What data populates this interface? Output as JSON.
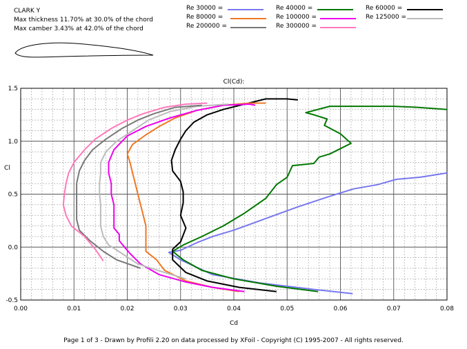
{
  "header": {
    "airfoil": "CLARK Y",
    "thickness": "Max thickness 11.70% at 30.0% of the chord",
    "camber": "Max camber 3.43% at 42.0% of the chord"
  },
  "footer": "Page 1 of 3  -  Drawn by Profili 2.20 on data processed by  XFoil - Copyright (C) 1995-2007 - All rights reserved.",
  "chart_data": {
    "type": "line",
    "title": "Cl(Cd):",
    "xlabel": "Cd",
    "ylabel": "Cl",
    "xlim": [
      0,
      0.08
    ],
    "ylim": [
      -0.5,
      1.5
    ],
    "xticks": [
      "0.00",
      "0.01",
      "0.02",
      "0.03",
      "0.04",
      "0.05",
      "0.06",
      "0.07",
      "0.08"
    ],
    "yticks": [
      "-0.5",
      "0.0",
      "0.5",
      "1.0",
      "1.5"
    ],
    "grid": true,
    "legend_position": "top",
    "series": [
      {
        "name": "Re 30000 =",
        "color": "#7777ee",
        "points": [
          [
            0.0623,
            -0.44
          ],
          [
            0.055,
            -0.4
          ],
          [
            0.045,
            -0.34
          ],
          [
            0.036,
            -0.26
          ],
          [
            0.03,
            -0.12
          ],
          [
            0.0278,
            -0.05
          ],
          [
            0.03,
            -0.03
          ],
          [
            0.033,
            0.04
          ],
          [
            0.036,
            0.1
          ],
          [
            0.04,
            0.16
          ],
          [
            0.046,
            0.27
          ],
          [
            0.052,
            0.38
          ],
          [
            0.058,
            0.48
          ],
          [
            0.0625,
            0.55
          ],
          [
            0.067,
            0.59
          ],
          [
            0.0705,
            0.64
          ],
          [
            0.075,
            0.66
          ],
          [
            0.08,
            0.7
          ]
        ]
      },
      {
        "name": "Re 40000 =",
        "color": "#007700",
        "points": [
          [
            0.0558,
            -0.42
          ],
          [
            0.048,
            -0.37
          ],
          [
            0.04,
            -0.3
          ],
          [
            0.034,
            -0.22
          ],
          [
            0.0305,
            -0.12
          ],
          [
            0.0285,
            -0.04
          ],
          [
            0.0305,
            0.02
          ],
          [
            0.034,
            0.1
          ],
          [
            0.038,
            0.2
          ],
          [
            0.042,
            0.32
          ],
          [
            0.046,
            0.46
          ],
          [
            0.048,
            0.59
          ],
          [
            0.05,
            0.66
          ],
          [
            0.051,
            0.77
          ],
          [
            0.055,
            0.79
          ],
          [
            0.056,
            0.85
          ],
          [
            0.058,
            0.88
          ],
          [
            0.062,
            0.98
          ],
          [
            0.06,
            1.07
          ],
          [
            0.057,
            1.15
          ],
          [
            0.0575,
            1.21
          ],
          [
            0.055,
            1.25
          ],
          [
            0.0535,
            1.27
          ],
          [
            0.058,
            1.33
          ],
          [
            0.07,
            1.33
          ],
          [
            0.0745,
            1.32
          ],
          [
            0.08,
            1.3
          ]
        ]
      },
      {
        "name": "Re 60000 =",
        "color": "#000000",
        "points": [
          [
            0.048,
            -0.42
          ],
          [
            0.041,
            -0.38
          ],
          [
            0.035,
            -0.32
          ],
          [
            0.031,
            -0.24
          ],
          [
            0.0285,
            -0.12
          ],
          [
            0.0285,
            -0.02
          ],
          [
            0.03,
            0.05
          ],
          [
            0.031,
            0.18
          ],
          [
            0.03,
            0.3
          ],
          [
            0.0305,
            0.42
          ],
          [
            0.0305,
            0.52
          ],
          [
            0.03,
            0.62
          ],
          [
            0.0285,
            0.72
          ],
          [
            0.0283,
            0.82
          ],
          [
            0.029,
            0.92
          ],
          [
            0.03,
            1.02
          ],
          [
            0.031,
            1.1
          ],
          [
            0.0325,
            1.18
          ],
          [
            0.035,
            1.25
          ],
          [
            0.038,
            1.3
          ],
          [
            0.042,
            1.35
          ],
          [
            0.046,
            1.4
          ],
          [
            0.05,
            1.4
          ],
          [
            0.052,
            1.39
          ]
        ]
      },
      {
        "name": "Re 80000 =",
        "color": "#ee7722",
        "points": [
          [
            0.041,
            -0.42
          ],
          [
            0.036,
            -0.38
          ],
          [
            0.031,
            -0.32
          ],
          [
            0.027,
            -0.22
          ],
          [
            0.0255,
            -0.12
          ],
          [
            0.0235,
            -0.04
          ],
          [
            0.0235,
            0.02
          ],
          [
            0.0235,
            0.1
          ],
          [
            0.0235,
            0.2
          ],
          [
            0.023,
            0.3
          ],
          [
            0.0225,
            0.4
          ],
          [
            0.022,
            0.5
          ],
          [
            0.0215,
            0.6
          ],
          [
            0.021,
            0.7
          ],
          [
            0.0205,
            0.8
          ],
          [
            0.02,
            0.88
          ],
          [
            0.021,
            0.97
          ],
          [
            0.0235,
            1.06
          ],
          [
            0.026,
            1.14
          ],
          [
            0.029,
            1.22
          ],
          [
            0.033,
            1.29
          ],
          [
            0.038,
            1.34
          ],
          [
            0.043,
            1.36
          ],
          [
            0.046,
            1.36
          ]
        ]
      },
      {
        "name": "Re 100000 =",
        "color": "#ee00ee",
        "points": [
          [
            0.042,
            -0.42
          ],
          [
            0.036,
            -0.38
          ],
          [
            0.031,
            -0.33
          ],
          [
            0.026,
            -0.26
          ],
          [
            0.0225,
            -0.16
          ],
          [
            0.0205,
            -0.06
          ],
          [
            0.0195,
            0.0
          ],
          [
            0.0185,
            0.06
          ],
          [
            0.0185,
            0.12
          ],
          [
            0.0175,
            0.18
          ],
          [
            0.0175,
            0.3
          ],
          [
            0.0175,
            0.4
          ],
          [
            0.017,
            0.5
          ],
          [
            0.017,
            0.6
          ],
          [
            0.0165,
            0.7
          ],
          [
            0.0165,
            0.8
          ],
          [
            0.0175,
            0.92
          ],
          [
            0.02,
            1.05
          ],
          [
            0.0235,
            1.14
          ],
          [
            0.028,
            1.22
          ],
          [
            0.033,
            1.29
          ],
          [
            0.038,
            1.34
          ],
          [
            0.043,
            1.35
          ],
          [
            0.044,
            1.34
          ]
        ]
      },
      {
        "name": "Re 125000 =",
        "color": "#bbbbbb",
        "points": [
          [
            0.031,
            -0.3
          ],
          [
            0.027,
            -0.24
          ],
          [
            0.022,
            -0.16
          ],
          [
            0.019,
            -0.06
          ],
          [
            0.0165,
            0.02
          ],
          [
            0.0155,
            0.1
          ],
          [
            0.015,
            0.2
          ],
          [
            0.015,
            0.3
          ],
          [
            0.015,
            0.4
          ],
          [
            0.0148,
            0.5
          ],
          [
            0.0148,
            0.6
          ],
          [
            0.015,
            0.7
          ],
          [
            0.015,
            0.8
          ],
          [
            0.016,
            0.9
          ],
          [
            0.018,
            1.0
          ],
          [
            0.021,
            1.1
          ],
          [
            0.024,
            1.2
          ],
          [
            0.028,
            1.28
          ],
          [
            0.033,
            1.33
          ],
          [
            0.039,
            1.35
          ]
        ]
      },
      {
        "name": "Re 200000 =",
        "color": "#777777",
        "points": [
          [
            0.0225,
            -0.2
          ],
          [
            0.018,
            -0.12
          ],
          [
            0.0155,
            -0.04
          ],
          [
            0.013,
            0.06
          ],
          [
            0.011,
            0.16
          ],
          [
            0.0105,
            0.26
          ],
          [
            0.0105,
            0.4
          ],
          [
            0.0105,
            0.5
          ],
          [
            0.0105,
            0.6
          ],
          [
            0.011,
            0.72
          ],
          [
            0.012,
            0.82
          ],
          [
            0.0135,
            0.92
          ],
          [
            0.016,
            1.02
          ],
          [
            0.019,
            1.12
          ],
          [
            0.022,
            1.2
          ],
          [
            0.025,
            1.26
          ],
          [
            0.029,
            1.32
          ],
          [
            0.034,
            1.34
          ]
        ]
      },
      {
        "name": "Re 300000 =",
        "color": "#ff77bb",
        "points": [
          [
            0.0155,
            -0.13
          ],
          [
            0.014,
            -0.02
          ],
          [
            0.012,
            0.1
          ],
          [
            0.0095,
            0.2
          ],
          [
            0.0085,
            0.3
          ],
          [
            0.008,
            0.4
          ],
          [
            0.0082,
            0.5
          ],
          [
            0.0085,
            0.6
          ],
          [
            0.009,
            0.7
          ],
          [
            0.01,
            0.8
          ],
          [
            0.012,
            0.92
          ],
          [
            0.014,
            1.02
          ],
          [
            0.017,
            1.12
          ],
          [
            0.02,
            1.2
          ],
          [
            0.023,
            1.26
          ],
          [
            0.027,
            1.32
          ],
          [
            0.031,
            1.35
          ],
          [
            0.035,
            1.36
          ]
        ]
      }
    ]
  }
}
